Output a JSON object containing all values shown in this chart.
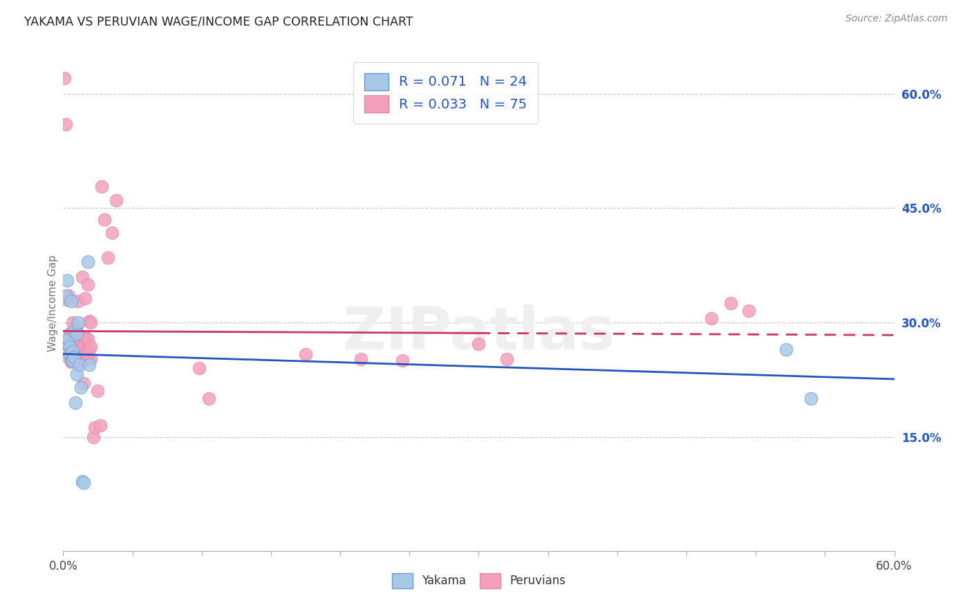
{
  "title": "YAKAMA VS PERUVIAN WAGE/INCOME GAP CORRELATION CHART",
  "source": "Source: ZipAtlas.com",
  "ylabel": "Wage/Income Gap",
  "xlim": [
    0.0,
    0.6
  ],
  "ylim": [
    0.0,
    0.65
  ],
  "x_ticks": [
    0.0,
    0.05,
    0.1,
    0.15,
    0.2,
    0.25,
    0.3,
    0.35,
    0.4,
    0.45,
    0.5,
    0.55,
    0.6
  ],
  "y_ticks_right": [
    0.15,
    0.3,
    0.45,
    0.6
  ],
  "y_tick_labels_right": [
    "15.0%",
    "30.0%",
    "45.0%",
    "60.0%"
  ],
  "yakama_color": "#A8C8E8",
  "peruvian_color": "#F4A0BC",
  "yakama_edge_color": "#6699CC",
  "peruvian_edge_color": "#DD88AA",
  "yakama_line_color": "#2255BB",
  "peruvian_line_color": "#CC3366",
  "peruvian_line_color_dashed": "#DD6688",
  "R_yakama": 0.071,
  "N_yakama": 24,
  "R_peruvian": 0.033,
  "N_peruvian": 75,
  "background_color": "#ffffff",
  "grid_color": "#cccccc",
  "watermark": "ZIPatlas",
  "legend_labels": [
    "Yakama",
    "Peruvians"
  ],
  "right_ytick_color": "#2255CC",
  "yakama_x": [
    0.002,
    0.003,
    0.004,
    0.004,
    0.005,
    0.005,
    0.006,
    0.006,
    0.007,
    0.007,
    0.008,
    0.008,
    0.009,
    0.01,
    0.01,
    0.011,
    0.012,
    0.013,
    0.014,
    0.015,
    0.018,
    0.019,
    0.522,
    0.54
  ],
  "yakama_y": [
    0.335,
    0.355,
    0.27,
    0.278,
    0.268,
    0.258,
    0.25,
    0.328,
    0.25,
    0.262,
    0.255,
    0.288,
    0.195,
    0.232,
    0.285,
    0.3,
    0.245,
    0.215,
    0.092,
    0.09,
    0.38,
    0.245,
    0.265,
    0.2
  ],
  "peruvian_x": [
    0.001,
    0.002,
    0.003,
    0.003,
    0.004,
    0.004,
    0.004,
    0.005,
    0.005,
    0.005,
    0.006,
    0.006,
    0.006,
    0.006,
    0.007,
    0.007,
    0.007,
    0.007,
    0.008,
    0.008,
    0.008,
    0.009,
    0.009,
    0.009,
    0.009,
    0.01,
    0.01,
    0.01,
    0.01,
    0.01,
    0.011,
    0.011,
    0.011,
    0.012,
    0.012,
    0.012,
    0.013,
    0.013,
    0.013,
    0.014,
    0.014,
    0.015,
    0.015,
    0.015,
    0.015,
    0.016,
    0.016,
    0.017,
    0.018,
    0.018,
    0.018,
    0.019,
    0.019,
    0.02,
    0.02,
    0.02,
    0.022,
    0.023,
    0.025,
    0.027,
    0.028,
    0.03,
    0.032,
    0.035,
    0.038,
    0.098,
    0.105,
    0.175,
    0.215,
    0.245,
    0.3,
    0.32,
    0.468,
    0.482,
    0.495
  ],
  "peruvian_y": [
    0.62,
    0.56,
    0.27,
    0.33,
    0.255,
    0.275,
    0.335,
    0.258,
    0.27,
    0.285,
    0.248,
    0.265,
    0.275,
    0.285,
    0.252,
    0.265,
    0.28,
    0.3,
    0.252,
    0.272,
    0.28,
    0.25,
    0.262,
    0.275,
    0.29,
    0.248,
    0.262,
    0.27,
    0.282,
    0.295,
    0.25,
    0.265,
    0.328,
    0.248,
    0.268,
    0.282,
    0.252,
    0.268,
    0.278,
    0.252,
    0.36,
    0.258,
    0.27,
    0.282,
    0.22,
    0.332,
    0.28,
    0.26,
    0.252,
    0.278,
    0.35,
    0.265,
    0.302,
    0.252,
    0.268,
    0.3,
    0.15,
    0.162,
    0.21,
    0.165,
    0.478,
    0.435,
    0.385,
    0.418,
    0.46,
    0.24,
    0.2,
    0.258,
    0.252,
    0.25,
    0.272,
    0.252,
    0.305,
    0.325,
    0.315
  ],
  "trend_split_x": 0.3,
  "yakama_trend_b": 0.2425,
  "yakama_trend_m": 0.038,
  "peruvian_trend_b": 0.26,
  "peruvian_trend_m": 0.08
}
